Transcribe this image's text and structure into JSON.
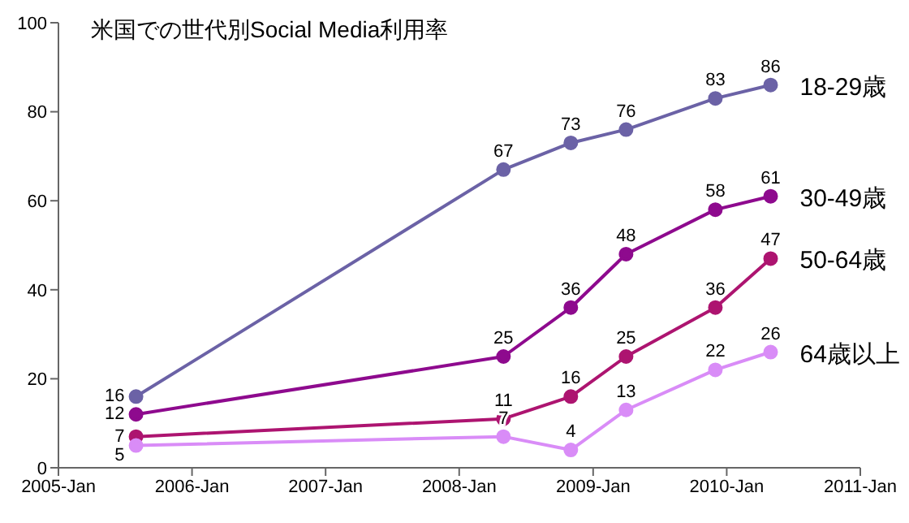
{
  "chart_data": {
    "type": "line",
    "title": "米国での世代別Social Media利用率",
    "x": [
      "2005-08",
      "2008-05",
      "2008-11",
      "2009-04",
      "2009-12",
      "2010-05"
    ],
    "series": [
      {
        "name": "18-29歳",
        "color": "#6b62a6",
        "values": [
          16,
          67,
          73,
          76,
          83,
          86
        ]
      },
      {
        "name": "30-49歳",
        "color": "#8e0a8e",
        "values": [
          12,
          25,
          36,
          48,
          58,
          61
        ]
      },
      {
        "name": "50-64歳",
        "color": "#ad1470",
        "values": [
          7,
          11,
          16,
          25,
          36,
          47
        ]
      },
      {
        "name": "64歳以上",
        "color": "#d98cf7",
        "values": [
          5,
          7,
          4,
          13,
          22,
          26
        ]
      }
    ],
    "xlim": [
      "2005-01",
      "2011-01"
    ],
    "xticks": [
      {
        "value": "2005-01",
        "label": "2005-Jan"
      },
      {
        "value": "2006-01",
        "label": "2006-Jan"
      },
      {
        "value": "2007-01",
        "label": "2007-Jan"
      },
      {
        "value": "2008-01",
        "label": "2008-Jan"
      },
      {
        "value": "2009-01",
        "label": "2009-Jan"
      },
      {
        "value": "2010-01",
        "label": "2010-Jan"
      },
      {
        "value": "2011-01",
        "label": "2011-Jan"
      }
    ],
    "ylim": [
      0,
      100
    ],
    "yticks": [
      0,
      20,
      40,
      60,
      80,
      100
    ],
    "grid": false,
    "legend": false,
    "marker": "circle",
    "line_style": "solid",
    "data_labels": true
  }
}
